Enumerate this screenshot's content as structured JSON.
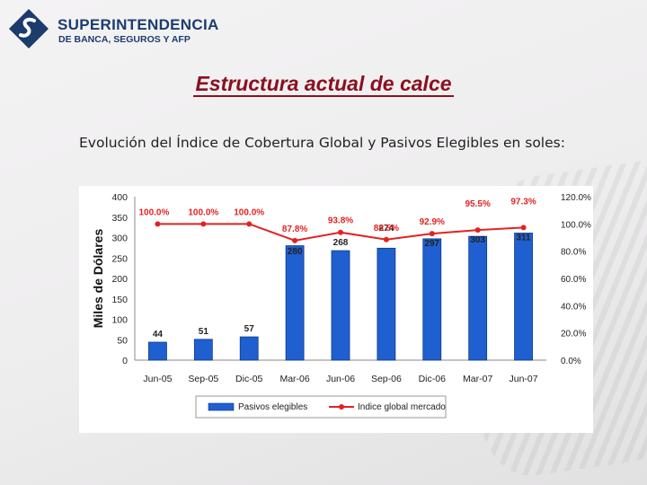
{
  "header": {
    "logo_line1": "SUPERINTENDENCIA",
    "logo_line2": "DE BANCA, SEGUROS Y AFP"
  },
  "page": {
    "title": "Estructura actual de calce",
    "subtitle": "Evolución del Índice de Cobertura Global y Pasivos Elegibles en soles:"
  },
  "colors": {
    "bar": "#1f5fcf",
    "line": "#e32222",
    "title": "#8a1020"
  },
  "chart_data": {
    "type": "bar",
    "categories": [
      "Jun-05",
      "Sep-05",
      "Dic-05",
      "Mar-06",
      "Jun-06",
      "Sep-06",
      "Dic-06",
      "Mar-07",
      "Jun-07"
    ],
    "series": [
      {
        "name": "Pasivos elegibles",
        "type": "bar",
        "axis": "left",
        "values": [
          44,
          51,
          57,
          280,
          268,
          274,
          297,
          303,
          311
        ],
        "labels": [
          "44",
          "51",
          "57",
          "280",
          "268",
          "274",
          "297",
          "303",
          "311"
        ]
      },
      {
        "name": "Indice global mercado",
        "type": "line",
        "axis": "right",
        "values": [
          100.0,
          100.0,
          100.0,
          87.8,
          93.8,
          88.5,
          92.9,
          95.5,
          97.3
        ],
        "labels": [
          "100.0%",
          "100.0%",
          "100.0%",
          "87.8%",
          "93.8%",
          "88.5%",
          "92.9%",
          "95.5%",
          "97.3%"
        ]
      }
    ],
    "ylabel": "Miles de Dólares",
    "ylim": [
      0,
      400
    ],
    "yticks": [
      "0",
      "50",
      "100",
      "150",
      "200",
      "250",
      "300",
      "350",
      "400"
    ],
    "y2lim": [
      0,
      120
    ],
    "y2ticks": [
      "0.0%",
      "20.0%",
      "40.0%",
      "60.0%",
      "80.0%",
      "100.0%",
      "120.0%"
    ],
    "legend": [
      "Pasivos elegibles",
      "Indice global mercado"
    ],
    "legend_position": "bottom"
  }
}
